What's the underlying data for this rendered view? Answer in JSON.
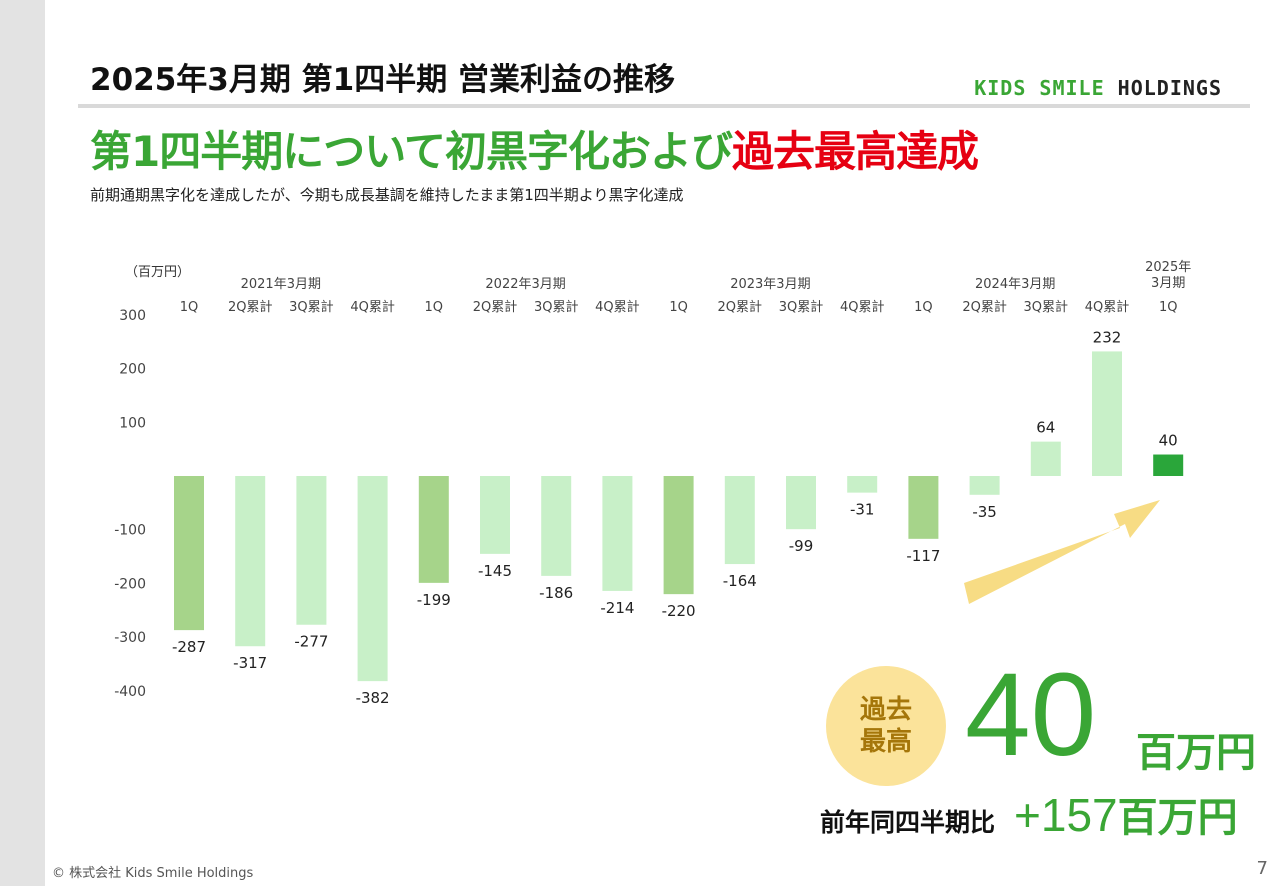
{
  "header": {
    "title": "2025年3月期 第1四半期 営業利益の推移",
    "brand_a": "KIDS SMILE",
    "brand_b": "HOLDINGS"
  },
  "headline": {
    "part1": "第1四半期について初黒字化および",
    "part2": "過去最高達成"
  },
  "subheadline": "前期通期黒字化を達成したが、今期も成長基調を維持したまま第1四半期より黒字化達成",
  "colors": {
    "green": "#3aa635",
    "red": "#e60012",
    "bar_light": "#c8f0c8",
    "bar_mid": "#a6d48a",
    "bar_dark": "#2aa63a",
    "arrow": "#f7dc84",
    "badge": "#fbe39a"
  },
  "chart_data": {
    "type": "bar",
    "unit_label": "（百万円）",
    "ylim": [
      -400,
      300
    ],
    "y_ticks": [
      300,
      200,
      100,
      -100,
      -200,
      -300,
      -400
    ],
    "year_groups": [
      {
        "label": "2021年3月期",
        "start": 0,
        "end": 3
      },
      {
        "label": "2022年3月期",
        "start": 4,
        "end": 7
      },
      {
        "label": "2023年3月期",
        "start": 8,
        "end": 11
      },
      {
        "label": "2024年3月期",
        "start": 12,
        "end": 15
      },
      {
        "label": "2025年\n3月期",
        "start": 16,
        "end": 16
      }
    ],
    "categories": [
      "1Q",
      "2Q累計",
      "3Q累計",
      "4Q累計",
      "1Q",
      "2Q累計",
      "3Q累計",
      "4Q累計",
      "1Q",
      "2Q累計",
      "3Q累計",
      "4Q累計",
      "1Q",
      "2Q累計",
      "3Q累計",
      "4Q累計",
      "1Q"
    ],
    "values": [
      -287,
      -317,
      -277,
      -382,
      -199,
      -145,
      -186,
      -214,
      -220,
      -164,
      -99,
      -31,
      -117,
      -35,
      64,
      232,
      40
    ],
    "bar_style": [
      "mid",
      "light",
      "light",
      "light",
      "mid",
      "light",
      "light",
      "light",
      "mid",
      "light",
      "light",
      "light",
      "mid",
      "light",
      "light",
      "light",
      "dark"
    ]
  },
  "callout": {
    "badge_line1": "過去",
    "badge_line2": "最高",
    "value": "40",
    "unit": "百万円",
    "yoy_label": "前年同四半期比",
    "yoy_value": "+157",
    "yoy_unit": "百万円"
  },
  "footer": {
    "copyright": "© 株式会社 Kids Smile Holdings",
    "page": "7"
  }
}
